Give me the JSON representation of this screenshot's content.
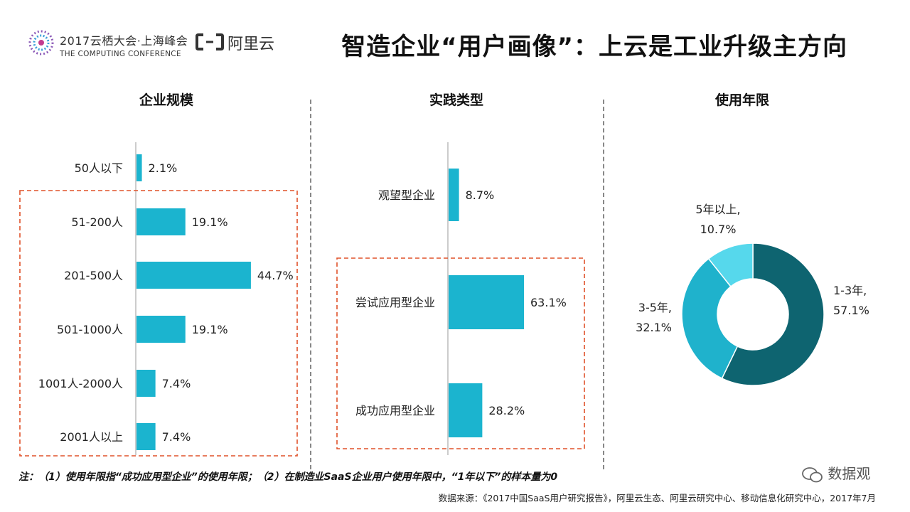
{
  "header": {
    "conference_line1": "2017云栖大会·上海峰会",
    "conference_line2": "THE COMPUTING CONFERENCE",
    "aliyun_name": "阿里云",
    "title": "智造企业“用户画像”：上云是工业升级主方向"
  },
  "colors": {
    "bar": "#1bb4cf",
    "donut_dark": "#0e6470",
    "donut_mid": "#1fb2cc",
    "donut_light": "#56d8ec",
    "highlight_border": "#e0522a"
  },
  "chart_data": [
    {
      "type": "bar",
      "orientation": "horizontal",
      "title": "企业规模",
      "categories": [
        "50人以下",
        "51-200人",
        "201-500人",
        "501-1000人",
        "1001人-2000人",
        "2001人以上"
      ],
      "values": [
        2.1,
        19.1,
        44.7,
        19.1,
        7.4,
        7.4
      ],
      "value_labels": [
        "2.1%",
        "19.1%",
        "44.7%",
        "19.1%",
        "7.4%",
        "7.4%"
      ],
      "highlight": [
        "51-200人",
        "201-500人",
        "501-1000人",
        "1001人-2000人",
        "2001人以上"
      ]
    },
    {
      "type": "bar",
      "orientation": "horizontal",
      "title": "实践类型",
      "categories": [
        "观望型企业",
        "尝试应用型企业",
        "成功应用型企业"
      ],
      "values": [
        8.7,
        63.1,
        28.2
      ],
      "value_labels": [
        "8.7%",
        "63.1%",
        "28.2%"
      ],
      "highlight": [
        "尝试应用型企业"
      ]
    },
    {
      "type": "pie",
      "style": "donut",
      "title": "使用年限",
      "slices": [
        {
          "label": "1-3年,",
          "value": 57.1,
          "value_label": "57.1%"
        },
        {
          "label": "3-5年,",
          "value": 32.1,
          "value_label": "32.1%"
        },
        {
          "label": "5年以上,",
          "value": 10.7,
          "value_label": "10.7%"
        }
      ]
    }
  ],
  "footer": {
    "note": "注：（1）使用年限指“成功应用型企业”的使用年限；（2）在制造业SaaS企业用户使用年限中，“1年以下”的样本量为0",
    "source": "数据来源：《2017中国SaaS用户研究报告》，阿里云生态、阿里云研究中心、移动信息化研究中心，2017年7月",
    "watermark": "数据观"
  }
}
